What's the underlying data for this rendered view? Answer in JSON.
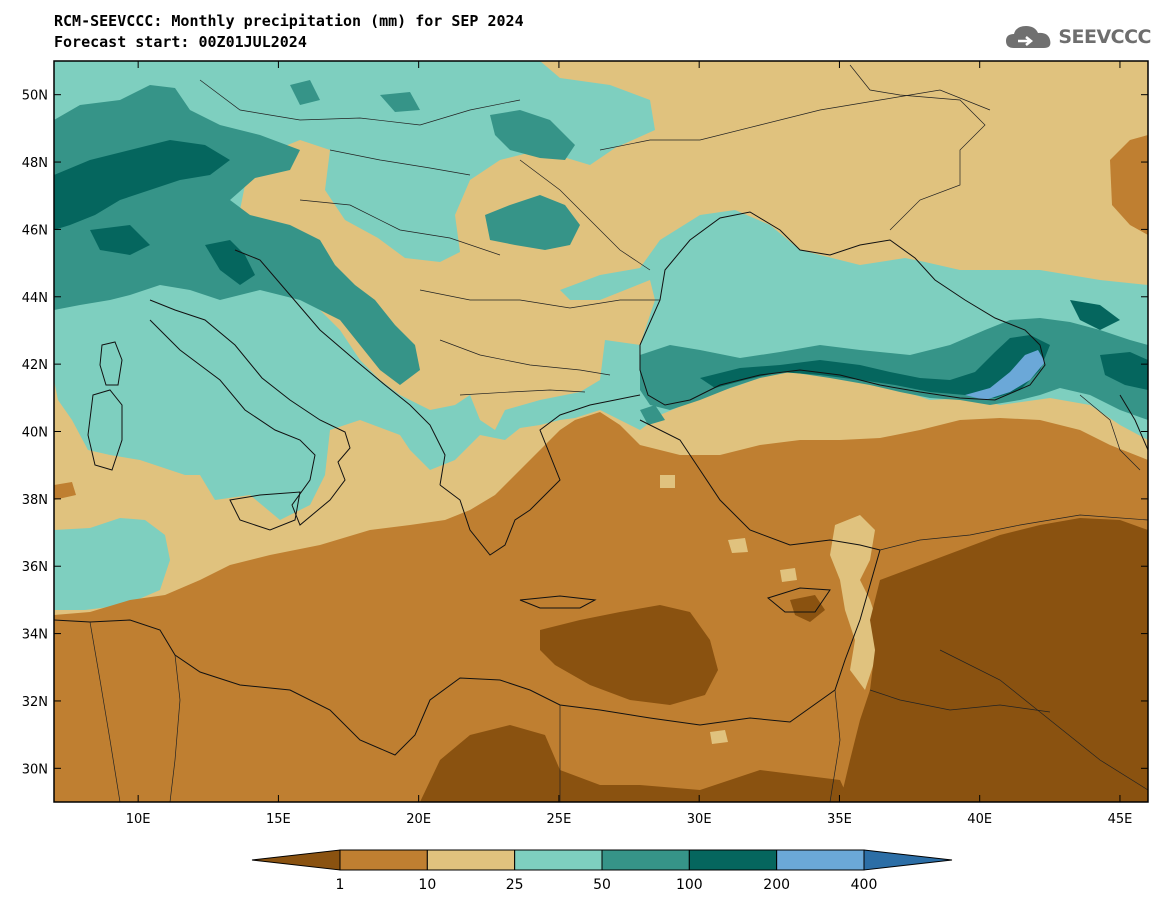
{
  "title": "RCM-SEEVCCC: Monthly precipitation (mm) for SEP 2024",
  "subtitle": "Forecast start: 00Z01JUL2024",
  "logo": {
    "text": "SEEVCCC",
    "icon": "cloud-icon"
  },
  "map": {
    "lon_range": [
      7,
      46
    ],
    "lat_range": [
      29,
      51
    ],
    "lat_ticks": [
      "30N",
      "32N",
      "34N",
      "36N",
      "38N",
      "40N",
      "42N",
      "44N",
      "46N",
      "48N",
      "50N"
    ],
    "lon_ticks": [
      "10E",
      "15E",
      "20E",
      "25E",
      "30E",
      "35E",
      "40E",
      "45E"
    ],
    "region": "Southeastern Europe, Mediterranean, Black Sea"
  },
  "colorbar": {
    "colors": [
      "#8a5210",
      "#bf7f31",
      "#e0c27e",
      "#7ecfbf",
      "#369488",
      "#05665e",
      "#6ba8d8",
      "#2c6ea6"
    ],
    "labels": [
      "1",
      "10",
      "25",
      "50",
      "100",
      "200",
      "400"
    ]
  }
}
